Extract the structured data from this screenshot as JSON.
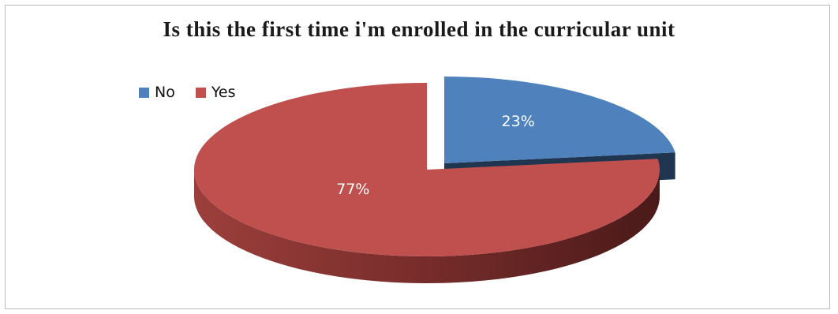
{
  "chart_data": {
    "type": "pie",
    "title": "Is this the first time i'm enrolled in the curricular unit",
    "legend_position": "top-left",
    "three_d": true,
    "slices": [
      {
        "name": "No",
        "value": 23,
        "label": "23%",
        "color": "#4f81bd",
        "side_color": "#1f3550",
        "exploded": true
      },
      {
        "name": "Yes",
        "value": 77,
        "label": "77%",
        "color": "#c0504d",
        "side_color": "#5a1f1e",
        "exploded": false
      }
    ]
  }
}
